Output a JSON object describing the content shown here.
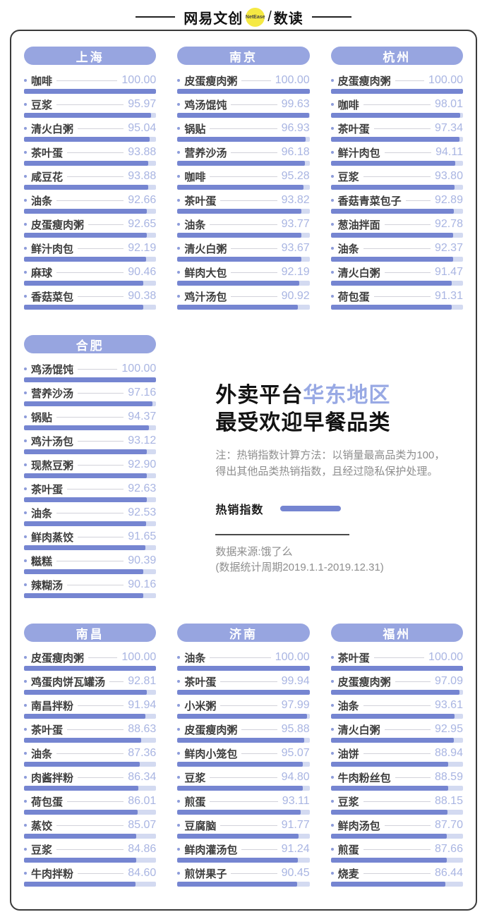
{
  "header": {
    "brand_left": "网易文创",
    "brand_badge": "NetEase",
    "brand_slash": "/",
    "brand_right": "数读"
  },
  "center": {
    "title_black": "外卖平台",
    "title_accent": "华东地区",
    "title_line2": "最受欢迎早餐品类",
    "note": "注：热销指数计算方法：以销量最高品类为100，得出其他品类热销指数，且经过隐私保护处理。",
    "legend_label": "热销指数",
    "source_line1": "数据来源:饿了么",
    "source_line2": "(数据统计周期2019.1.1-2019.12.31)"
  },
  "colors": {
    "bar_fill": "#7585d1",
    "bar_track": "#d3daf1",
    "city_pill": "#97a5e0",
    "value_text": "#a9b5e2",
    "title_accent": "#98a9e4",
    "badge_yellow": "#f5e943"
  },
  "chart_data": {
    "type": "bar",
    "orientation": "horizontal",
    "title": "外卖平台华东地区最受欢迎早餐品类",
    "value_label": "热销指数",
    "value_range": [
      0,
      100
    ],
    "note": "注：热销指数计算方法：以销量最高品类为100，得出其他品类热销指数，且经过隐私保护处理。",
    "source": "数据来源:饿了么 (数据统计周期2019.1.1-2019.12.31)",
    "charts": [
      {
        "city": "上海",
        "categories": [
          "咖啡",
          "豆浆",
          "清火白粥",
          "茶叶蛋",
          "咸豆花",
          "油条",
          "皮蛋瘦肉粥",
          "鲜汁肉包",
          "麻球",
          "香菇菜包"
        ],
        "values": [
          100.0,
          95.97,
          95.04,
          93.88,
          93.88,
          92.66,
          92.65,
          92.19,
          90.46,
          90.38
        ]
      },
      {
        "city": "南京",
        "categories": [
          "皮蛋瘦肉粥",
          "鸡汤馄饨",
          "锅贴",
          "营养沙汤",
          "咖啡",
          "茶叶蛋",
          "油条",
          "清火白粥",
          "鲜肉大包",
          "鸡汁汤包"
        ],
        "values": [
          100.0,
          99.63,
          96.93,
          96.18,
          95.28,
          93.82,
          93.77,
          93.67,
          92.19,
          90.92
        ]
      },
      {
        "city": "杭州",
        "categories": [
          "皮蛋瘦肉粥",
          "咖啡",
          "茶叶蛋",
          "鲜汁肉包",
          "豆浆",
          "香菇青菜包子",
          "葱油拌面",
          "油条",
          "清火白粥",
          "荷包蛋"
        ],
        "values": [
          100.0,
          98.01,
          97.34,
          94.11,
          93.8,
          92.89,
          92.78,
          92.37,
          91.47,
          91.31
        ]
      },
      {
        "city": "合肥",
        "categories": [
          "鸡汤馄饨",
          "营养沙汤",
          "锅贴",
          "鸡汁汤包",
          "现熬豆粥",
          "茶叶蛋",
          "油条",
          "鲜肉蒸饺",
          "糍糕",
          "辣糊汤"
        ],
        "values": [
          100.0,
          97.16,
          94.37,
          93.12,
          92.9,
          92.63,
          92.53,
          91.65,
          90.39,
          90.16
        ]
      },
      {
        "city": "南昌",
        "categories": [
          "皮蛋瘦肉粥",
          "鸡蛋肉饼瓦罐汤",
          "南昌拌粉",
          "茶叶蛋",
          "油条",
          "肉酱拌粉",
          "荷包蛋",
          "蒸饺",
          "豆浆",
          "牛肉拌粉"
        ],
        "values": [
          100.0,
          92.81,
          91.94,
          88.63,
          87.36,
          86.34,
          86.01,
          85.07,
          84.86,
          84.6
        ]
      },
      {
        "city": "济南",
        "categories": [
          "油条",
          "茶叶蛋",
          "小米粥",
          "皮蛋瘦肉粥",
          "鲜肉小笼包",
          "豆浆",
          "煎蛋",
          "豆腐脑",
          "鲜肉灌汤包",
          "煎饼果子"
        ],
        "values": [
          100.0,
          99.94,
          97.99,
          95.88,
          95.07,
          94.8,
          93.11,
          91.77,
          91.24,
          90.45
        ]
      },
      {
        "city": "福州",
        "categories": [
          "茶叶蛋",
          "皮蛋瘦肉粥",
          "油条",
          "清火白粥",
          "油饼",
          "牛肉粉丝包",
          "豆浆",
          "鲜肉汤包",
          "煎蛋",
          "烧麦"
        ],
        "values": [
          100.0,
          97.09,
          93.61,
          92.95,
          88.94,
          88.59,
          88.15,
          87.7,
          87.66,
          86.44
        ]
      }
    ]
  }
}
